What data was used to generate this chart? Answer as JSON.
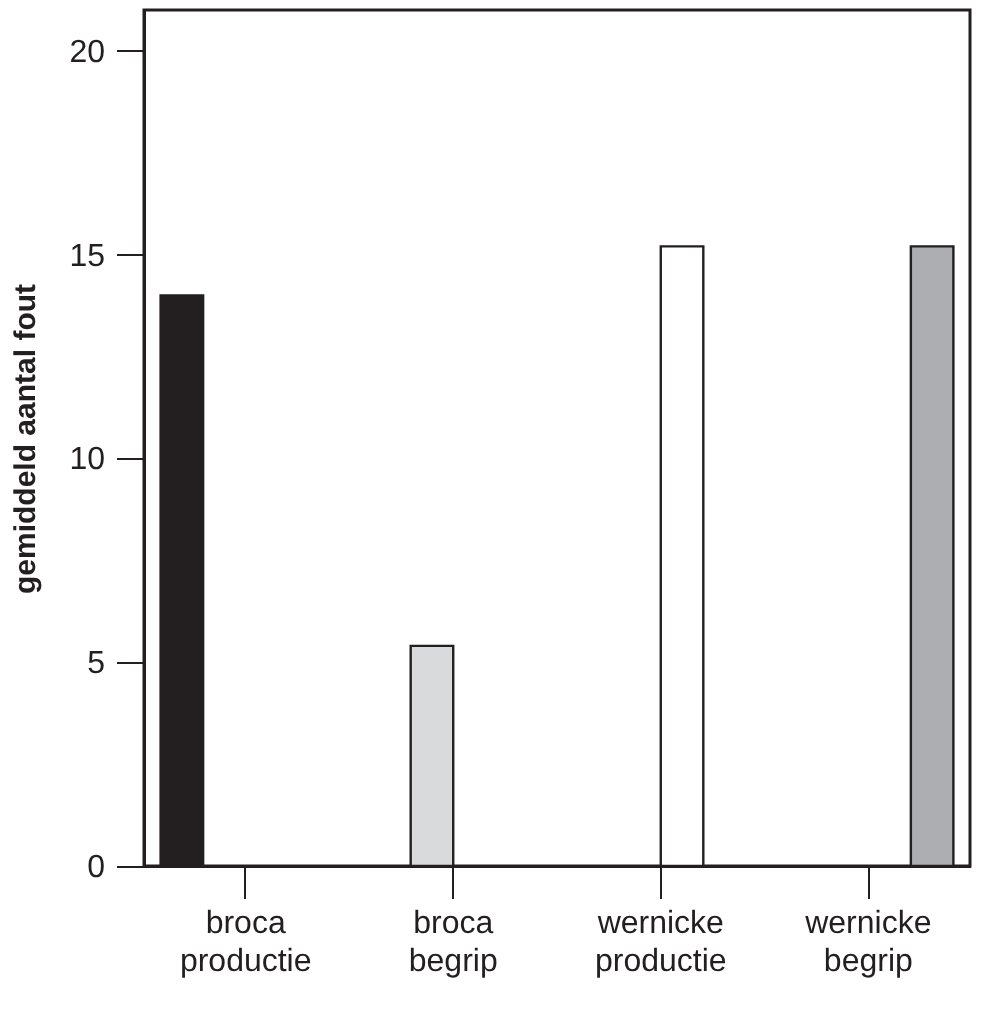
{
  "chart_data": {
    "type": "bar",
    "ylabel": "gemiddeld aantal fout",
    "categories": [
      "broca productie",
      "broca begrip",
      "wernicke productie",
      "wernicke begrip"
    ],
    "series": [
      {
        "color": "#231f20",
        "values": [
          14,
          null,
          null,
          null
        ]
      },
      {
        "color": "#d9dadb",
        "values": [
          null,
          5.4,
          null,
          null
        ]
      },
      {
        "color": "#ffffff",
        "values": [
          null,
          null,
          15.2,
          null
        ]
      },
      {
        "color": "#adaeb1",
        "values": [
          null,
          null,
          null,
          15.2
        ]
      }
    ],
    "ylim": [
      0,
      21
    ],
    "yticks": [
      0,
      5,
      10,
      15,
      20
    ],
    "grid": false,
    "legend": false
  }
}
